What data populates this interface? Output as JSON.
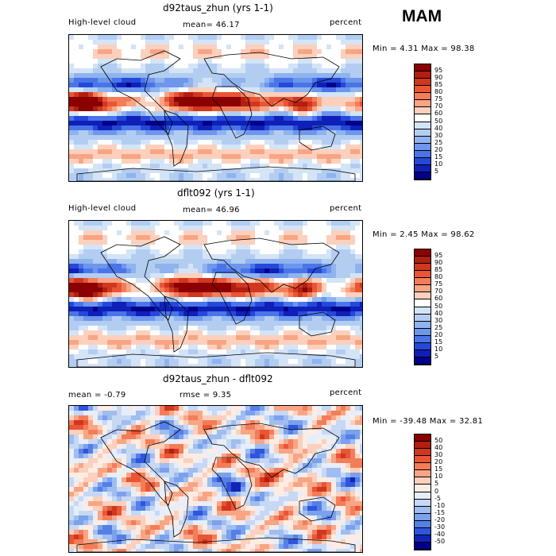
{
  "season": "MAM",
  "panels": [
    {
      "title": "d92taus_zhun (yrs 1-1)",
      "left_label": "High-level cloud",
      "mid_label": "mean=  46.17",
      "right_label": "percent",
      "stats": "Min =    4.31  Max =   98.38",
      "colorbar": {
        "labels": [
          "95",
          "90",
          "85",
          "80",
          "75",
          "70",
          "60",
          "50",
          "40",
          "30",
          "25",
          "20",
          "15",
          "10",
          "5"
        ],
        "colors": [
          "#8b0000",
          "#b01f10",
          "#d0371f",
          "#e95535",
          "#f37d59",
          "#f8a585",
          "#fcd0bc",
          "#ffffff",
          "#d4e4f7",
          "#b3cdf1",
          "#8fb3ee",
          "#6d96ec",
          "#4a75e8",
          "#2449d9",
          "#0f1fb8",
          "#00008a"
        ]
      },
      "field": "clim"
    },
    {
      "title": "dflt092 (yrs 1-1)",
      "left_label": "High-level cloud",
      "mid_label": "mean=  46.96",
      "right_label": "percent",
      "stats": "Min =    2.45  Max =   98.62",
      "colorbar": {
        "labels": [
          "95",
          "90",
          "85",
          "80",
          "75",
          "70",
          "60",
          "50",
          "40",
          "30",
          "25",
          "20",
          "15",
          "10",
          "5"
        ],
        "colors": [
          "#8b0000",
          "#b01f10",
          "#d0371f",
          "#e95535",
          "#f37d59",
          "#f8a585",
          "#fcd0bc",
          "#ffffff",
          "#d4e4f7",
          "#b3cdf1",
          "#8fb3ee",
          "#6d96ec",
          "#4a75e8",
          "#2449d9",
          "#0f1fb8",
          "#00008a"
        ]
      },
      "field": "clim"
    },
    {
      "title": "d92taus_zhun - dflt092",
      "left_label": "mean =   -0.79",
      "mid_label": "rmse =    9.35",
      "right_label": "percent",
      "stats": "Min = -39.48  Max =   32.81",
      "colorbar": {
        "labels": [
          "50",
          "40",
          "30",
          "20",
          "15",
          "10",
          "5",
          "0",
          "-5",
          "-10",
          "-15",
          "-20",
          "-30",
          "-40",
          "-50"
        ],
        "colors": [
          "#8b0000",
          "#b01f10",
          "#d0371f",
          "#e95535",
          "#f37d59",
          "#f8a585",
          "#fcd0bc",
          "#fdece4",
          "#e6eefa",
          "#c6d8f4",
          "#a0bdf0",
          "#7ba0ec",
          "#557fe8",
          "#2f55dc",
          "#1025b8",
          "#00008a"
        ]
      },
      "field": "diff"
    }
  ]
}
